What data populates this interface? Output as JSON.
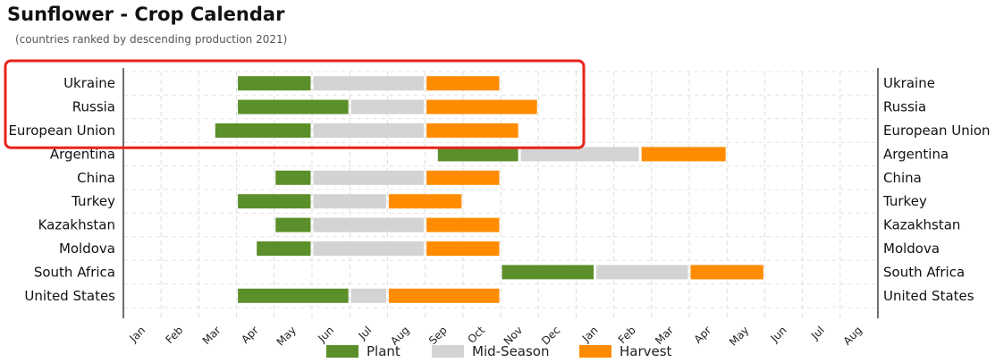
{
  "chart_data": {
    "type": "gantt",
    "title": "Sunflower - Crop Calendar",
    "subtitle": "(countries ranked by descending production 2021)",
    "months": [
      "Jan",
      "Feb",
      "Mar",
      "Apr",
      "May",
      "Jun",
      "Jul",
      "Aug",
      "Sep",
      "Oct",
      "Nov",
      "Dec",
      "Jan",
      "Feb",
      "Mar",
      "Apr",
      "May",
      "Jun",
      "Jul",
      "Aug"
    ],
    "phases": [
      {
        "name": "Plant",
        "color": "#5b8f2a"
      },
      {
        "name": "Mid-Season",
        "color": "#d3d3d3"
      },
      {
        "name": "Harvest",
        "color": "#ff8c00"
      }
    ],
    "rows": [
      {
        "country": "Ukraine",
        "plant": [
          3.0,
          5.0
        ],
        "mid": [
          5.0,
          8.0
        ],
        "harvest": [
          8.0,
          10.0
        ]
      },
      {
        "country": "Russia",
        "plant": [
          3.0,
          6.0
        ],
        "mid": [
          6.0,
          8.0
        ],
        "harvest": [
          8.0,
          11.0
        ]
      },
      {
        "country": "European Union",
        "plant": [
          2.4,
          5.0
        ],
        "mid": [
          5.0,
          8.0
        ],
        "harvest": [
          8.0,
          10.5
        ]
      },
      {
        "country": "Argentina",
        "plant": [
          8.3,
          10.5
        ],
        "mid": [
          10.5,
          13.7
        ],
        "harvest": [
          13.7,
          16.0
        ]
      },
      {
        "country": "China",
        "plant": [
          4.0,
          5.0
        ],
        "mid": [
          5.0,
          8.0
        ],
        "harvest": [
          8.0,
          10.0
        ]
      },
      {
        "country": "Turkey",
        "plant": [
          3.0,
          5.0
        ],
        "mid": [
          5.0,
          7.0
        ],
        "harvest": [
          7.0,
          9.0
        ]
      },
      {
        "country": "Kazakhstan",
        "plant": [
          4.0,
          5.0
        ],
        "mid": [
          5.0,
          8.0
        ],
        "harvest": [
          8.0,
          10.0
        ]
      },
      {
        "country": "Moldova",
        "plant": [
          3.5,
          5.0
        ],
        "mid": [
          5.0,
          8.0
        ],
        "harvest": [
          8.0,
          10.0
        ]
      },
      {
        "country": "South Africa",
        "plant": [
          10.0,
          12.5
        ],
        "mid": [
          12.5,
          15.0
        ],
        "harvest": [
          15.0,
          17.0
        ]
      },
      {
        "country": "United States",
        "plant": [
          3.0,
          6.0
        ],
        "mid": [
          6.0,
          7.0
        ],
        "harvest": [
          7.0,
          10.0
        ]
      }
    ],
    "highlight_rows": [
      "Ukraine",
      "Russia",
      "European Union"
    ],
    "highlight_color": "#e8231a",
    "grid": true,
    "legend_position": "bottom-center"
  }
}
